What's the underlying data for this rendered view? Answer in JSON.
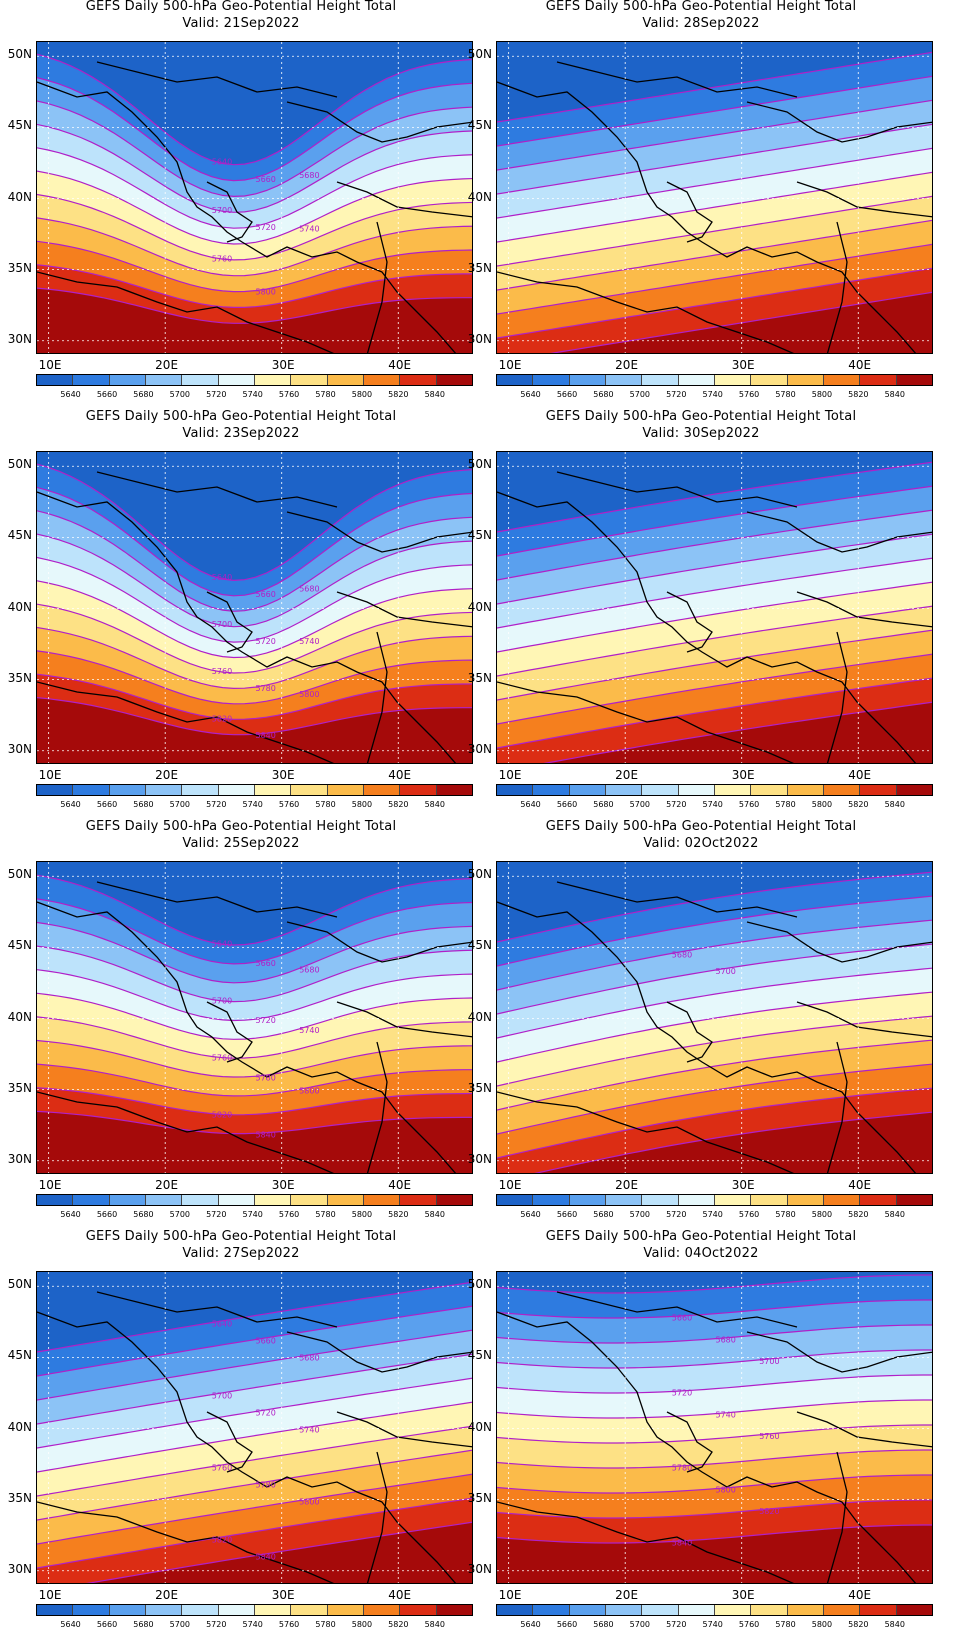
{
  "title": "GEFS Daily 500-hPa Geo-Potential Height Total",
  "valid_prefix": "Valid:",
  "panels": [
    {
      "date": "21Sep2022",
      "pattern": "trough",
      "depth": 0.95,
      "labels": [
        "5640",
        "5660",
        "5680",
        "5700",
        "5720",
        "5740",
        "5760",
        "5800"
      ]
    },
    {
      "date": "28Sep2022",
      "pattern": "sw",
      "depth": 0.0,
      "labels": []
    },
    {
      "date": "23Sep2022",
      "pattern": "trough",
      "depth": 1.0,
      "labels": [
        "5640",
        "5660",
        "5680",
        "5700",
        "5720",
        "5740",
        "5760",
        "5780",
        "5800",
        "5820",
        "5840"
      ]
    },
    {
      "date": "30Sep2022",
      "pattern": "sw",
      "depth": 0.1,
      "labels": []
    },
    {
      "date": "25Sep2022",
      "pattern": "trough",
      "depth": 0.6,
      "labels": [
        "5640",
        "5660",
        "5680",
        "5700",
        "5720",
        "5740",
        "5760",
        "5780",
        "5800",
        "5820",
        "5840"
      ]
    },
    {
      "date": "02Oct2022",
      "pattern": "sw",
      "depth": 0.3,
      "labels": [
        "5680",
        "5700"
      ]
    },
    {
      "date": "27Sep2022",
      "pattern": "sw",
      "depth": 0.05,
      "labels": [
        "5640",
        "5660",
        "5680",
        "5700",
        "5720",
        "5740",
        "5760",
        "5780",
        "5800",
        "5820",
        "5840"
      ]
    },
    {
      "date": "04Oct2022",
      "pattern": "zonal",
      "depth": 0.5,
      "labels": [
        "5660",
        "5680",
        "5700",
        "5720",
        "5740",
        "5760",
        "5780",
        "5800",
        "5820",
        "5840"
      ]
    }
  ],
  "lat_labels": [
    "50N",
    "45N",
    "40N",
    "35N",
    "30N"
  ],
  "lon_labels": [
    "10E",
    "20E",
    "30E",
    "40E"
  ],
  "colorbar": {
    "levels": [
      "5640",
      "5660",
      "5680",
      "5700",
      "5720",
      "5740",
      "5760",
      "5780",
      "5800",
      "5820",
      "5840"
    ],
    "colors": [
      "#1d63c8",
      "#2e7be0",
      "#5aa0ee",
      "#8cc3f6",
      "#bde3fb",
      "#e6f8fb",
      "#fff6b5",
      "#fde185",
      "#fbbb4a",
      "#f57f1e",
      "#dc2d14",
      "#a50a0a"
    ]
  },
  "contour_color": "#b020c8"
}
